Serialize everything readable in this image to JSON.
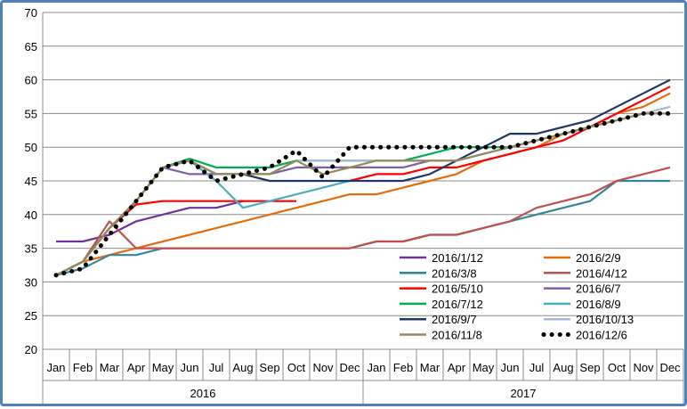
{
  "chart_data": {
    "type": "line",
    "x_tick_labels": [
      "Jan",
      "Feb",
      "Mar",
      "Apr",
      "May",
      "Jun",
      "Jul",
      "Aug",
      "Sep",
      "Oct",
      "Nov",
      "Dec",
      "Jan",
      "Feb",
      "Mar",
      "Apr",
      "May",
      "Jun",
      "Jul",
      "Aug",
      "Sep",
      "Oct",
      "Nov",
      "Dec"
    ],
    "year_groups": [
      {
        "label": "2016",
        "start_index": 0,
        "end_index": 11
      },
      {
        "label": "2017",
        "start_index": 12,
        "end_index": 23
      }
    ],
    "ylim": [
      20,
      70
    ],
    "y_ticks": [
      20,
      25,
      30,
      35,
      40,
      45,
      50,
      55,
      60,
      65,
      70
    ],
    "grid": "horizontal",
    "legend_position": "bottom-right inside plot, two columns",
    "series": [
      {
        "name": "2016/1/12",
        "color": "#7030a0",
        "style": "solid",
        "values": [
          36,
          36,
          37,
          39,
          40,
          41,
          41,
          42,
          null,
          null,
          null,
          null,
          null,
          null,
          null,
          null,
          null,
          null,
          null,
          null,
          null,
          null,
          null,
          null
        ]
      },
      {
        "name": "2016/2/9",
        "color": "#e46c0a",
        "style": "solid",
        "values": [
          31,
          33,
          34,
          35,
          36,
          37,
          38,
          39,
          40,
          41,
          42,
          43,
          43,
          44,
          45,
          46,
          48,
          49,
          50,
          52,
          53,
          55,
          56,
          58
        ]
      },
      {
        "name": "2016/3/8",
        "color": "#31859c",
        "style": "solid",
        "values": [
          31,
          32,
          34,
          34,
          35,
          35,
          35,
          35,
          35,
          35,
          35,
          35,
          36,
          36,
          37,
          37,
          38,
          39,
          40,
          41,
          42,
          45,
          45,
          45
        ]
      },
      {
        "name": "2016/4/12",
        "color": "#c0504d",
        "style": "solid",
        "values": [
          31,
          33,
          39,
          35,
          35,
          35,
          35,
          35,
          35,
          35,
          35,
          35,
          36,
          36,
          37,
          37,
          38,
          39,
          41,
          42,
          43,
          45,
          46,
          47
        ]
      },
      {
        "name": "2016/5/10",
        "color": "#ff0000",
        "style": "solid",
        "values": [
          31,
          33,
          38,
          41.5,
          42,
          42,
          42,
          42,
          42,
          42,
          null,
          45,
          46,
          46,
          47,
          47,
          48,
          49,
          50,
          51,
          53,
          55,
          57,
          59
        ]
      },
      {
        "name": "2016/6/7",
        "color": "#7f5fa9",
        "style": "solid",
        "values": [
          31,
          33,
          38,
          42,
          47,
          46,
          46,
          46,
          46,
          47,
          47,
          47,
          47,
          47,
          48,
          48,
          49,
          null,
          null,
          null,
          null,
          null,
          null,
          null
        ]
      },
      {
        "name": "2016/7/12",
        "color": "#00b050",
        "style": "solid",
        "values": [
          31,
          33,
          38,
          42,
          47,
          48.3,
          47,
          47,
          47,
          48,
          48,
          48,
          48,
          48,
          49,
          50,
          50,
          50,
          null,
          null,
          null,
          null,
          null,
          null
        ]
      },
      {
        "name": "2016/8/9",
        "color": "#4bacc6",
        "style": "solid",
        "values": [
          31,
          33,
          38,
          42,
          47,
          48,
          45,
          41,
          42,
          43,
          44,
          45,
          null,
          null,
          null,
          null,
          null,
          null,
          null,
          null,
          null,
          null,
          null,
          null
        ]
      },
      {
        "name": "2016/9/7",
        "color": "#1f3864",
        "style": "solid",
        "values": [
          31,
          33,
          38,
          42,
          47,
          48,
          46,
          46,
          45,
          45,
          45,
          45,
          45,
          45,
          46,
          48,
          50,
          52,
          52,
          53,
          54,
          56,
          58,
          60
        ]
      },
      {
        "name": "2016/10/13",
        "color": "#a6b9d8",
        "style": "solid",
        "values": [
          31,
          33,
          38,
          42,
          47,
          48,
          46,
          46,
          46,
          48,
          48,
          48,
          48,
          48,
          48,
          48,
          49,
          50,
          51,
          52,
          53,
          54,
          55,
          56
        ]
      },
      {
        "name": "2016/11/8",
        "color": "#948a54",
        "style": "solid",
        "values": [
          31,
          33,
          38,
          42,
          47,
          48,
          46,
          46,
          46,
          48,
          46,
          47,
          48,
          48,
          48,
          48,
          49,
          50,
          51,
          52,
          53,
          54,
          55,
          55
        ]
      },
      {
        "name": "2016/12/6",
        "color": "#000000",
        "style": "dotted",
        "values": [
          31,
          32,
          37,
          42,
          47,
          48,
          45,
          46,
          47,
          49.5,
          45.5,
          50,
          50,
          50,
          50,
          50,
          50,
          50,
          51,
          52,
          53,
          54,
          55,
          55
        ]
      }
    ]
  }
}
